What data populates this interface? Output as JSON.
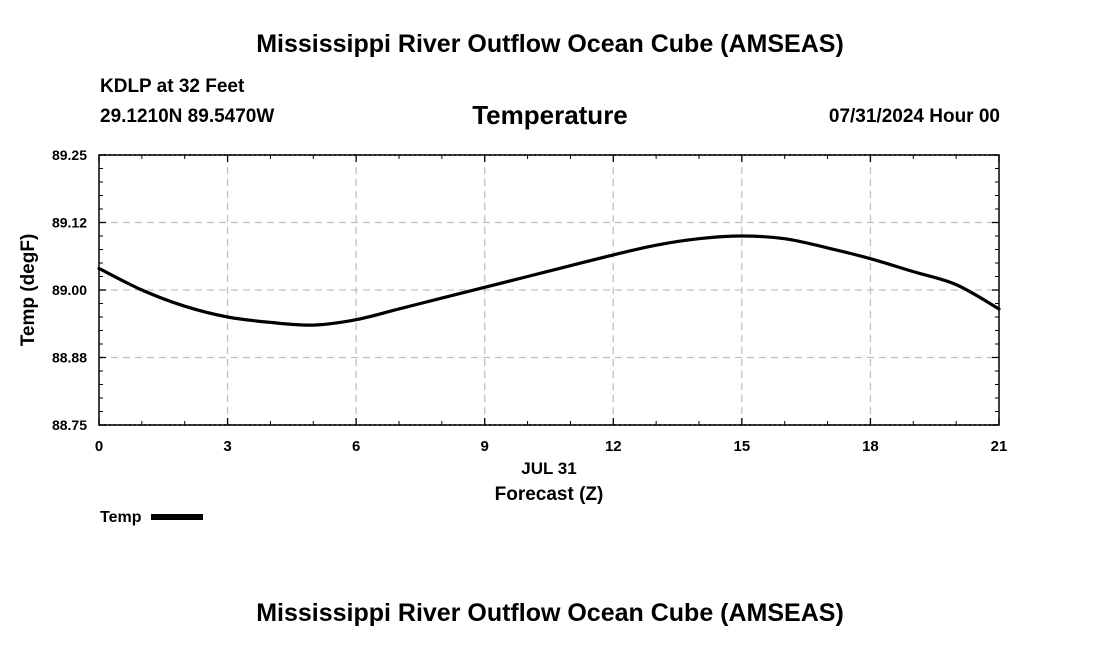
{
  "header": {
    "title": "Mississippi River Outflow Ocean Cube (AMSEAS)",
    "station": "KDLP at 32 Feet",
    "coordinates": "29.1210N  89.5470W",
    "variable": "Temperature",
    "datetime": "07/31/2024 Hour 00"
  },
  "footer": {
    "title": "Mississippi River Outflow Ocean Cube (AMSEAS)"
  },
  "legend": {
    "label": "Temp",
    "color": "#000000",
    "placement": "bottom-left"
  },
  "chart_data": {
    "type": "line",
    "xlabel": "Forecast (Z)",
    "date_label": "JUL 31",
    "ylabel": "Temp (degF)",
    "xlim": [
      0,
      21
    ],
    "ylim": [
      88.75,
      89.25
    ],
    "x_ticks": [
      "0",
      "3",
      "6",
      "9",
      "12",
      "15",
      "18",
      "21"
    ],
    "y_ticks": [
      "88.75",
      "88.88",
      "89.00",
      "89.12",
      "89.25"
    ],
    "grid": true,
    "series": [
      {
        "name": "Temp",
        "color": "#000000",
        "x": [
          0,
          1,
          2,
          3,
          4,
          5,
          6,
          7,
          8,
          9,
          10,
          11,
          12,
          13,
          14,
          15,
          16,
          17,
          18,
          19,
          20,
          21
        ],
        "y": [
          89.04,
          89.0,
          88.97,
          88.95,
          88.94,
          88.935,
          88.945,
          88.965,
          88.985,
          89.005,
          89.025,
          89.045,
          89.065,
          89.083,
          89.095,
          89.1,
          89.095,
          89.078,
          89.058,
          89.034,
          89.01,
          88.965
        ]
      }
    ]
  }
}
